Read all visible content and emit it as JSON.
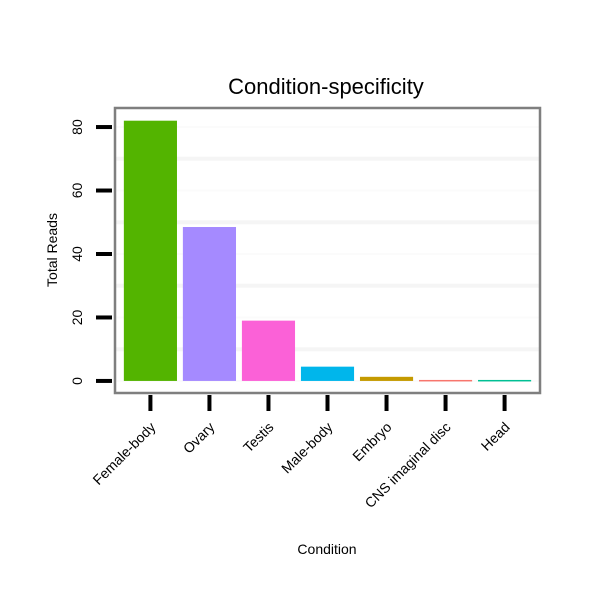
{
  "chart_data": {
    "type": "bar",
    "title": "Condition-specificity",
    "xlabel": "Condition",
    "ylabel": "Total Reads",
    "categories": [
      "Female-body",
      "Ovary",
      "Testis",
      "Male-body",
      "Embryo",
      "CNS imaginal disc",
      "Head"
    ],
    "values": [
      82,
      48.5,
      19,
      4.5,
      1.3,
      0.3,
      0.3
    ],
    "colors": [
      "#53B400",
      "#A58AFF",
      "#FB61D7",
      "#00B6EB",
      "#C49A00",
      "#F8766D",
      "#00C094"
    ],
    "yticks": [
      0,
      20,
      40,
      60,
      80
    ],
    "ytick_labels": [
      "0",
      "20",
      "40",
      "60",
      "80"
    ],
    "minor_grid": [
      10,
      30,
      50,
      70
    ],
    "ylim": [
      -3.8,
      86
    ],
    "grid": true,
    "legend": "none"
  }
}
